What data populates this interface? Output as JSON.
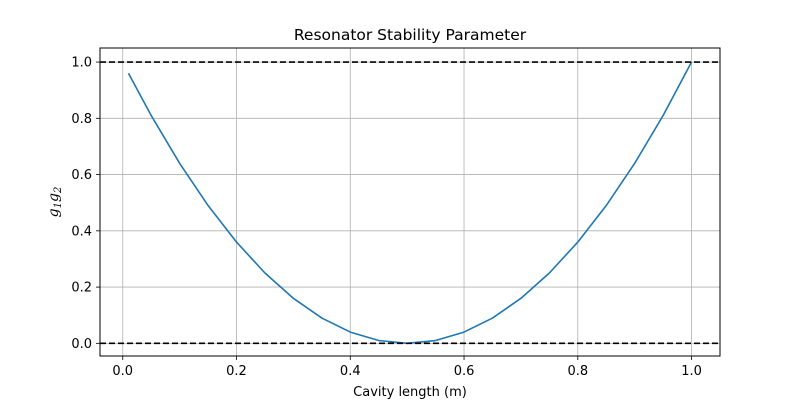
{
  "chart_data": {
    "type": "line",
    "title": "Resonator Stability Parameter",
    "xlabel": "Cavity length (m)",
    "ylabel": {
      "base": "g",
      "sub1": "1",
      "base2": "g",
      "sub2": "2"
    },
    "xlim": [
      -0.04,
      1.05
    ],
    "ylim": [
      -0.045,
      1.05
    ],
    "xticks": [
      0.0,
      0.2,
      0.4,
      0.6,
      0.8,
      1.0
    ],
    "xtick_labels": [
      "0.0",
      "0.2",
      "0.4",
      "0.6",
      "0.8",
      "1.0"
    ],
    "yticks": [
      0.0,
      0.2,
      0.4,
      0.6,
      0.8,
      1.0
    ],
    "ytick_labels": [
      "0.0",
      "0.2",
      "0.4",
      "0.6",
      "0.8",
      "1.0"
    ],
    "grid": true,
    "series": [
      {
        "color": "#1f77b4",
        "x": [
          0.01,
          0.05,
          0.1,
          0.15,
          0.2,
          0.25,
          0.3,
          0.35,
          0.4,
          0.45,
          0.5,
          0.55,
          0.6,
          0.65,
          0.7,
          0.75,
          0.8,
          0.85,
          0.9,
          0.95,
          1.0
        ],
        "y": [
          0.9604,
          0.81,
          0.64,
          0.49,
          0.36,
          0.25,
          0.16,
          0.09,
          0.04,
          0.01,
          0.0,
          0.01,
          0.04,
          0.09,
          0.16,
          0.25,
          0.36,
          0.49,
          0.64,
          0.81,
          1.0
        ]
      }
    ],
    "hlines": [
      {
        "y": 1.0,
        "color": "#000000",
        "style": "dashed"
      },
      {
        "y": 0.0,
        "color": "#000000",
        "style": "dashed"
      }
    ]
  }
}
